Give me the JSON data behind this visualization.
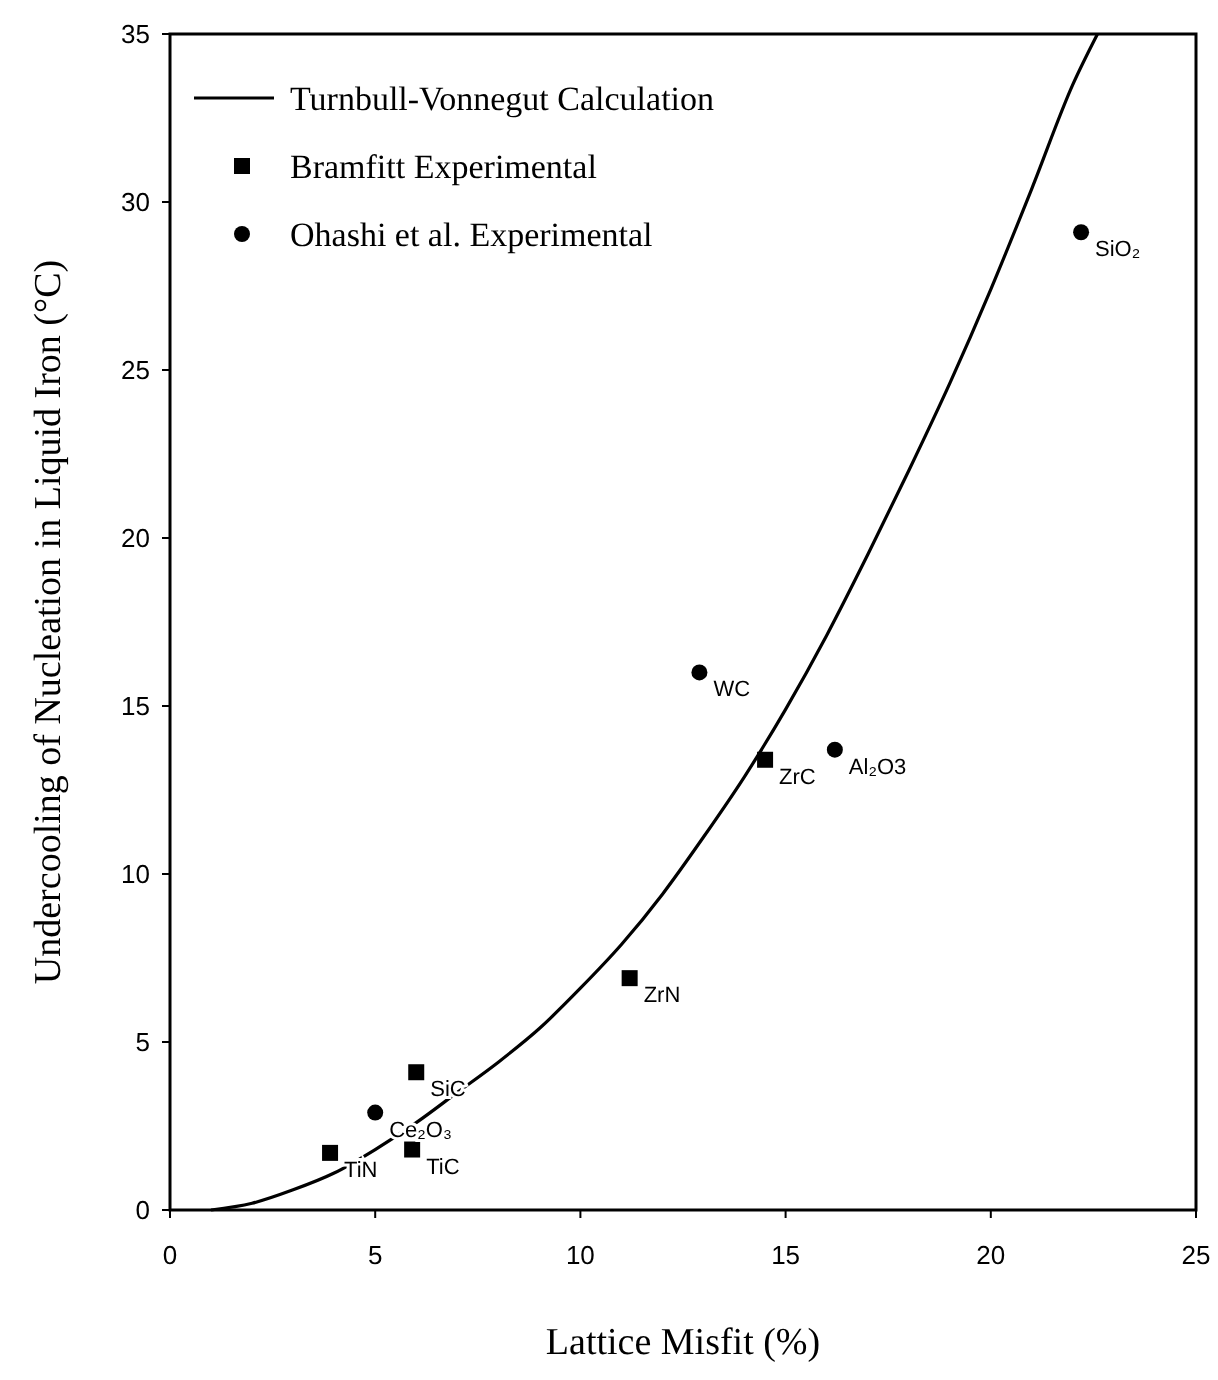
{
  "chart_data": {
    "type": "scatter",
    "xlabel": "Lattice Misfit (%)",
    "ylabel": "Undercooling of Nucleation in Liquid Iron (°C)",
    "xlim": [
      0,
      25
    ],
    "xticks": [
      0,
      5,
      10,
      15,
      20,
      25
    ],
    "ylim": [
      0,
      35
    ],
    "yticks": [
      0,
      5,
      10,
      15,
      20,
      25,
      30,
      35
    ],
    "grid": false,
    "legend": "top left",
    "series": [
      {
        "name": "Turnbull-Vonnegut Calculation",
        "type": "line",
        "color": "#000000",
        "marker": "none",
        "line_style": "solid",
        "x": [
          1,
          2,
          3,
          4,
          5,
          6,
          7,
          8,
          9,
          10,
          11,
          12,
          13,
          14,
          15,
          16,
          17,
          18,
          19,
          20,
          21,
          22,
          22.6
        ],
        "values": [
          0,
          0.2,
          0.6,
          1.1,
          1.8,
          2.6,
          3.5,
          4.4,
          5.4,
          6.6,
          7.9,
          9.4,
          11.1,
          12.9,
          14.9,
          17.1,
          19.5,
          22,
          24.6,
          27.4,
          30.4,
          33.5,
          35
        ]
      },
      {
        "name": "Bramfitt Experimental",
        "color": "#000000",
        "marker": "square",
        "x": [
          3.9,
          5.9,
          6.0,
          11.2,
          14.5
        ],
        "values": [
          1.7,
          1.8,
          4.1,
          6.9,
          13.4
        ]
      },
      {
        "name": "Ohashi et al. Experimental",
        "color": "#000000",
        "marker": "circle",
        "x": [
          5.0,
          12.9,
          16.2,
          22.2
        ],
        "values": [
          2.9,
          16.0,
          13.7,
          29.1
        ]
      }
    ],
    "annotations": [
      {
        "text": "TiN",
        "x": 3.9,
        "y": 1.7
      },
      {
        "text": "TiC",
        "x": 5.9,
        "y": 1.8
      },
      {
        "text": "SiC",
        "x": 6.0,
        "y": 4.1
      },
      {
        "text": "ZrN",
        "x": 11.2,
        "y": 6.9
      },
      {
        "text": "ZrC",
        "x": 14.5,
        "y": 13.4
      },
      {
        "text": "Ce₂O₃",
        "x": 5.0,
        "y": 2.9
      },
      {
        "text": "WC",
        "x": 12.9,
        "y": 16.0
      },
      {
        "text": "Al₂O3",
        "x": 16.2,
        "y": 13.7
      },
      {
        "text": "SiO₂",
        "x": 22.2,
        "y": 29.1
      }
    ]
  }
}
